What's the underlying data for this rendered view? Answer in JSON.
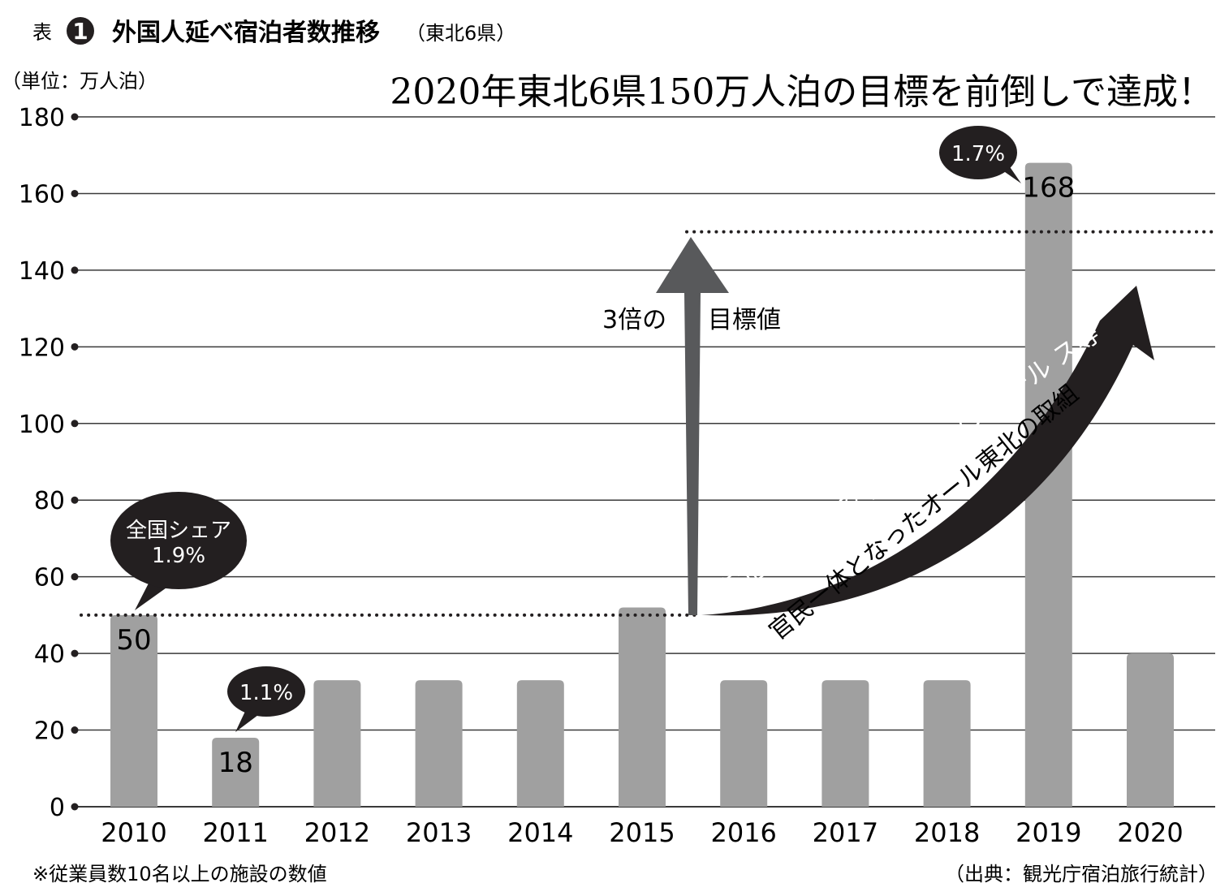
{
  "header": {
    "prefix": "表",
    "number": "1",
    "title": "外国人延べ宿泊者数推移",
    "subtitle": "（東北6県）",
    "unit": "（単位：万人泊）",
    "headline": "2020年東北6県150万人泊の目標を前倒しで達成！"
  },
  "chart_data": {
    "type": "bar",
    "categories": [
      "2010",
      "2011",
      "2012",
      "2013",
      "2014",
      "2015",
      "2016",
      "2017",
      "2018",
      "2019",
      "2020"
    ],
    "values": [
      50,
      18,
      33,
      33,
      33,
      52,
      33,
      33,
      33,
      168,
      40
    ],
    "value_labels": [
      "50",
      "18",
      "",
      "",
      "",
      "",
      "",
      "",
      "",
      "168",
      ""
    ],
    "ylim": [
      0,
      180
    ],
    "yticks": [
      0,
      20,
      40,
      60,
      80,
      100,
      120,
      140,
      160,
      180
    ],
    "grid": true,
    "reference_lines": [
      {
        "y": 50,
        "x_from": "2010",
        "x_to": "2015"
      },
      {
        "y": 150,
        "x_from": "2015",
        "x_to": "2020"
      }
    ],
    "annotations": {
      "share_2010_line1": "全国シェア",
      "share_2010_line2": "1.9%",
      "share_2011": "1.1%",
      "share_2019": "1.7%",
      "target_left": "3倍の",
      "target_right": "目標値",
      "arrow_text_1": "東北復興対策交付金、トップセール ス等",
      "arrow_text_2": "官民一体となったオール東北の取組"
    },
    "colors": {
      "bar": "#a0a0a0",
      "grid": "#3a3a3a",
      "text": "#231f20",
      "bubble": "#231f20",
      "arrow": "#231f20",
      "target_arrow": "#58595b"
    }
  },
  "footer": {
    "note": "※従業員数10名以上の施設の数値",
    "source": "（出典：観光庁宿泊旅行統計）"
  }
}
